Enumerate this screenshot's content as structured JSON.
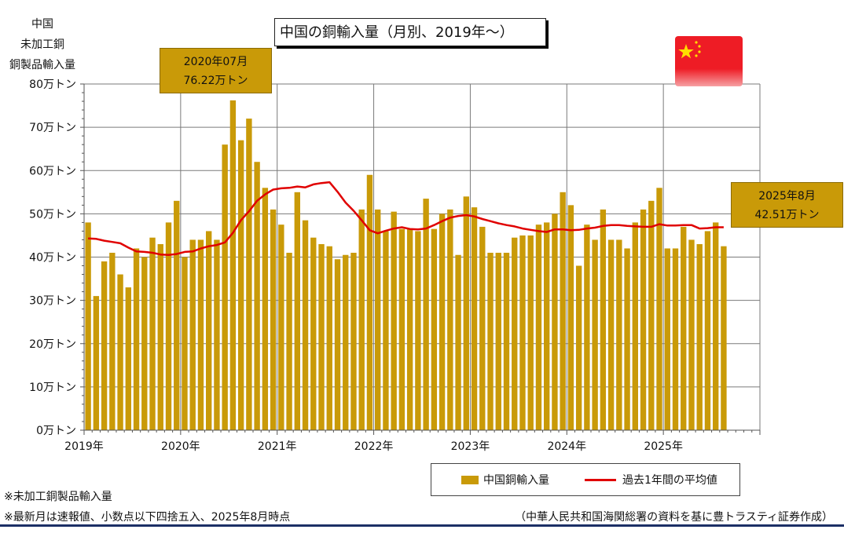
{
  "yaxis_title_lines": [
    "中国",
    "未加工銅",
    "銅製品輸入量"
  ],
  "title": "中国の銅輸入量（月別、2019年～）",
  "callout_peak": {
    "line1": "2020年07月",
    "line2": "76.22万トン"
  },
  "callout_latest": {
    "line1": "2025年8月",
    "line2": "42.51万トン"
  },
  "flag": {
    "name": "china-flag-icon",
    "red": "#ee1c25",
    "yellow": "#ffde00"
  },
  "legend": {
    "bar_label": "中国銅輸入量",
    "line_label": "過去1年間の平均値"
  },
  "notes": [
    "※未加工銅製品輸入量",
    "※最新月は速報値、小数点以下四捨五入、2025年8月時点"
  ],
  "source": "（中華人民共和国海関総署の資料を基に豊トラスティ証券作成）",
  "colors": {
    "bar": "#c99a08",
    "line": "#e00000",
    "grid": "#7a7a7a",
    "rule": "#1c2f66"
  },
  "chart_data": {
    "type": "bar",
    "ylim": [
      0,
      80
    ],
    "yticks": [
      0,
      10,
      20,
      30,
      40,
      50,
      60,
      70,
      80
    ],
    "ytick_labels": [
      "0万トン",
      "10万トン",
      "20万トン",
      "30万トン",
      "40万トン",
      "50万トン",
      "60万トン",
      "70万トン",
      "80万トン"
    ],
    "xtick_labels": [
      "2019年",
      "2020年",
      "2021年",
      "2022年",
      "2023年",
      "2024年",
      "2025年"
    ],
    "grid": true,
    "legend_position": "bottom-right",
    "series": [
      {
        "name": "中国銅輸入量",
        "type": "bar",
        "values": [
          48,
          31,
          39,
          41,
          36,
          33,
          42,
          40,
          44.5,
          43,
          48,
          53,
          40,
          44,
          44,
          46,
          44,
          66,
          76.22,
          67,
          72,
          62,
          56,
          51,
          47.5,
          41,
          55,
          48.5,
          44.5,
          43,
          42.5,
          39.5,
          40.5,
          41,
          51,
          59,
          51,
          46,
          50.5,
          46.5,
          46.5,
          46,
          53.5,
          46.5,
          50,
          51,
          40.5,
          54,
          51.5,
          47,
          41,
          41,
          41,
          44.5,
          45,
          45,
          47.5,
          48,
          50,
          55,
          52,
          38,
          47.5,
          44,
          51,
          44,
          44,
          42,
          48,
          51,
          53,
          56,
          42,
          42,
          47,
          44,
          43,
          46,
          48,
          42.51
        ]
      },
      {
        "name": "過去1年間の平均値",
        "type": "line",
        "values": [
          44.3,
          44.2,
          43.8,
          43.5,
          43.2,
          42.2,
          41.3,
          41.2,
          41.0,
          40.6,
          40.5,
          40.7,
          41.2,
          41.3,
          42.0,
          42.5,
          42.8,
          43.4,
          45.6,
          48.5,
          50.6,
          53.0,
          54.5,
          55.6,
          55.9,
          56.0,
          56.3,
          56.1,
          56.8,
          57.1,
          57.3,
          55.1,
          52.6,
          50.7,
          48.5,
          46.2,
          45.5,
          46.1,
          46.6,
          46.9,
          46.5,
          46.4,
          46.6,
          47.4,
          48.3,
          49.1,
          49.5,
          49.7,
          49.4,
          48.8,
          48.3,
          47.8,
          47.4,
          47.1,
          46.6,
          46.3,
          46.0,
          45.8,
          46.4,
          46.4,
          46.2,
          46.3,
          46.6,
          46.8,
          47.2,
          47.4,
          47.4,
          47.2,
          47.1,
          47.0,
          47.0,
          47.6,
          47.3,
          47.3,
          47.4,
          47.4,
          46.6,
          46.7,
          46.9,
          46.9
        ]
      }
    ]
  }
}
